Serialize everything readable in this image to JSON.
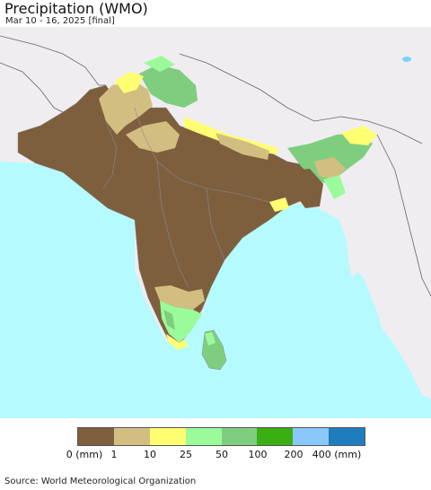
{
  "header": {
    "title": "Precipitation (WMO)",
    "subtitle": "Mar 10 - 16, 2025 [final]"
  },
  "map": {
    "colors": {
      "ocean": "#b5fafe",
      "land_outside": "#f0edf0",
      "border": "#8a8a8a",
      "water_body": "#7fd0ff"
    },
    "region": "South Asia"
  },
  "legend": {
    "colors": [
      "#7d5f3e",
      "#d3be82",
      "#ffff71",
      "#9bfb9b",
      "#7fce7f",
      "#3bae12",
      "#8ac8fc",
      "#1f7dbd"
    ],
    "labels": [
      "0 (mm)",
      "1",
      "10",
      "25",
      "50",
      "100",
      "200",
      "400 (mm)"
    ]
  },
  "footer": {
    "source": "Source: World Meteorological Organization"
  }
}
